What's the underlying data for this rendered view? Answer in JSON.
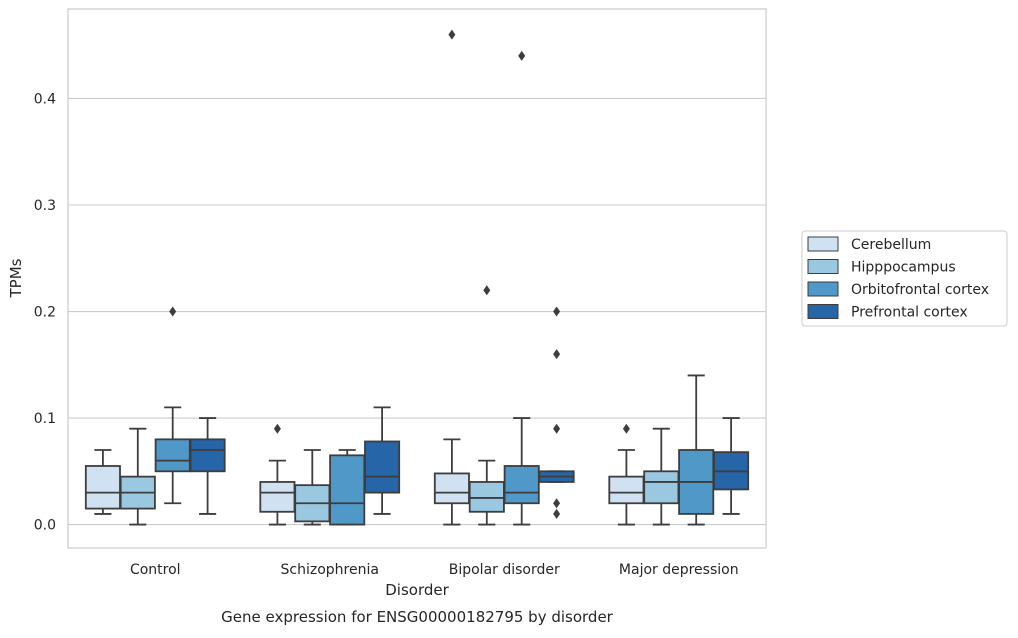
{
  "chart_data": {
    "type": "box",
    "title": "",
    "caption": "Gene expression for ENSG00000182795 by disorder",
    "xlabel": "Disorder",
    "ylabel": "TPMs",
    "ylim": [
      -0.022,
      0.484
    ],
    "yticks": [
      0.0,
      0.1,
      0.2,
      0.3,
      0.4
    ],
    "ytick_labels": [
      "0.0",
      "0.1",
      "0.2",
      "0.3",
      "0.4"
    ],
    "grid": "horizontal",
    "legend_position": "right",
    "categories": [
      "Control",
      "Schizophrenia",
      "Bipolar disorder",
      "Major depression"
    ],
    "series": [
      {
        "name": "Cerebellum",
        "color": "#d0e1f2",
        "boxes": [
          {
            "whislo": 0.01,
            "q1": 0.015,
            "med": 0.03,
            "q3": 0.055,
            "whishi": 0.07,
            "fliers": []
          },
          {
            "whislo": 0.0,
            "q1": 0.012,
            "med": 0.03,
            "q3": 0.04,
            "whishi": 0.06,
            "fliers": [
              0.09
            ]
          },
          {
            "whislo": 0.0,
            "q1": 0.02,
            "med": 0.03,
            "q3": 0.048,
            "whishi": 0.08,
            "fliers": [
              0.46
            ]
          },
          {
            "whislo": 0.0,
            "q1": 0.02,
            "med": 0.03,
            "q3": 0.045,
            "whishi": 0.07,
            "fliers": [
              0.09
            ]
          }
        ]
      },
      {
        "name": "Hipppocampus",
        "color": "#9ac8e0",
        "boxes": [
          {
            "whislo": 0.0,
            "q1": 0.015,
            "med": 0.03,
            "q3": 0.045,
            "whishi": 0.09,
            "fliers": []
          },
          {
            "whislo": 0.0,
            "q1": 0.003,
            "med": 0.02,
            "q3": 0.037,
            "whishi": 0.07,
            "fliers": []
          },
          {
            "whislo": 0.0,
            "q1": 0.012,
            "med": 0.025,
            "q3": 0.04,
            "whishi": 0.06,
            "fliers": [
              0.22
            ]
          },
          {
            "whislo": 0.0,
            "q1": 0.02,
            "med": 0.04,
            "q3": 0.05,
            "whishi": 0.09,
            "fliers": []
          }
        ]
      },
      {
        "name": "Orbitofrontal cortex",
        "color": "#5098c8",
        "boxes": [
          {
            "whislo": 0.02,
            "q1": 0.05,
            "med": 0.06,
            "q3": 0.08,
            "whishi": 0.11,
            "fliers": [
              0.2
            ]
          },
          {
            "whislo": 0.0,
            "q1": 0.0,
            "med": 0.02,
            "q3": 0.065,
            "whishi": 0.07,
            "fliers": []
          },
          {
            "whislo": 0.0,
            "q1": 0.02,
            "med": 0.03,
            "q3": 0.055,
            "whishi": 0.1,
            "fliers": [
              0.44
            ]
          },
          {
            "whislo": 0.0,
            "q1": 0.01,
            "med": 0.04,
            "q3": 0.07,
            "whishi": 0.14,
            "fliers": []
          }
        ]
      },
      {
        "name": "Prefrontal cortex",
        "color": "#2565a8",
        "boxes": [
          {
            "whislo": 0.01,
            "q1": 0.05,
            "med": 0.07,
            "q3": 0.08,
            "whishi": 0.1,
            "fliers": []
          },
          {
            "whislo": 0.01,
            "q1": 0.03,
            "med": 0.045,
            "q3": 0.078,
            "whishi": 0.11,
            "fliers": []
          },
          {
            "whislo": 0.04,
            "q1": 0.04,
            "med": 0.045,
            "q3": 0.05,
            "whishi": 0.05,
            "fliers": [
              0.2,
              0.16,
              0.09,
              0.02,
              0.01
            ]
          },
          {
            "whislo": 0.01,
            "q1": 0.033,
            "med": 0.05,
            "q3": 0.068,
            "whishi": 0.1,
            "fliers": []
          }
        ]
      }
    ]
  }
}
